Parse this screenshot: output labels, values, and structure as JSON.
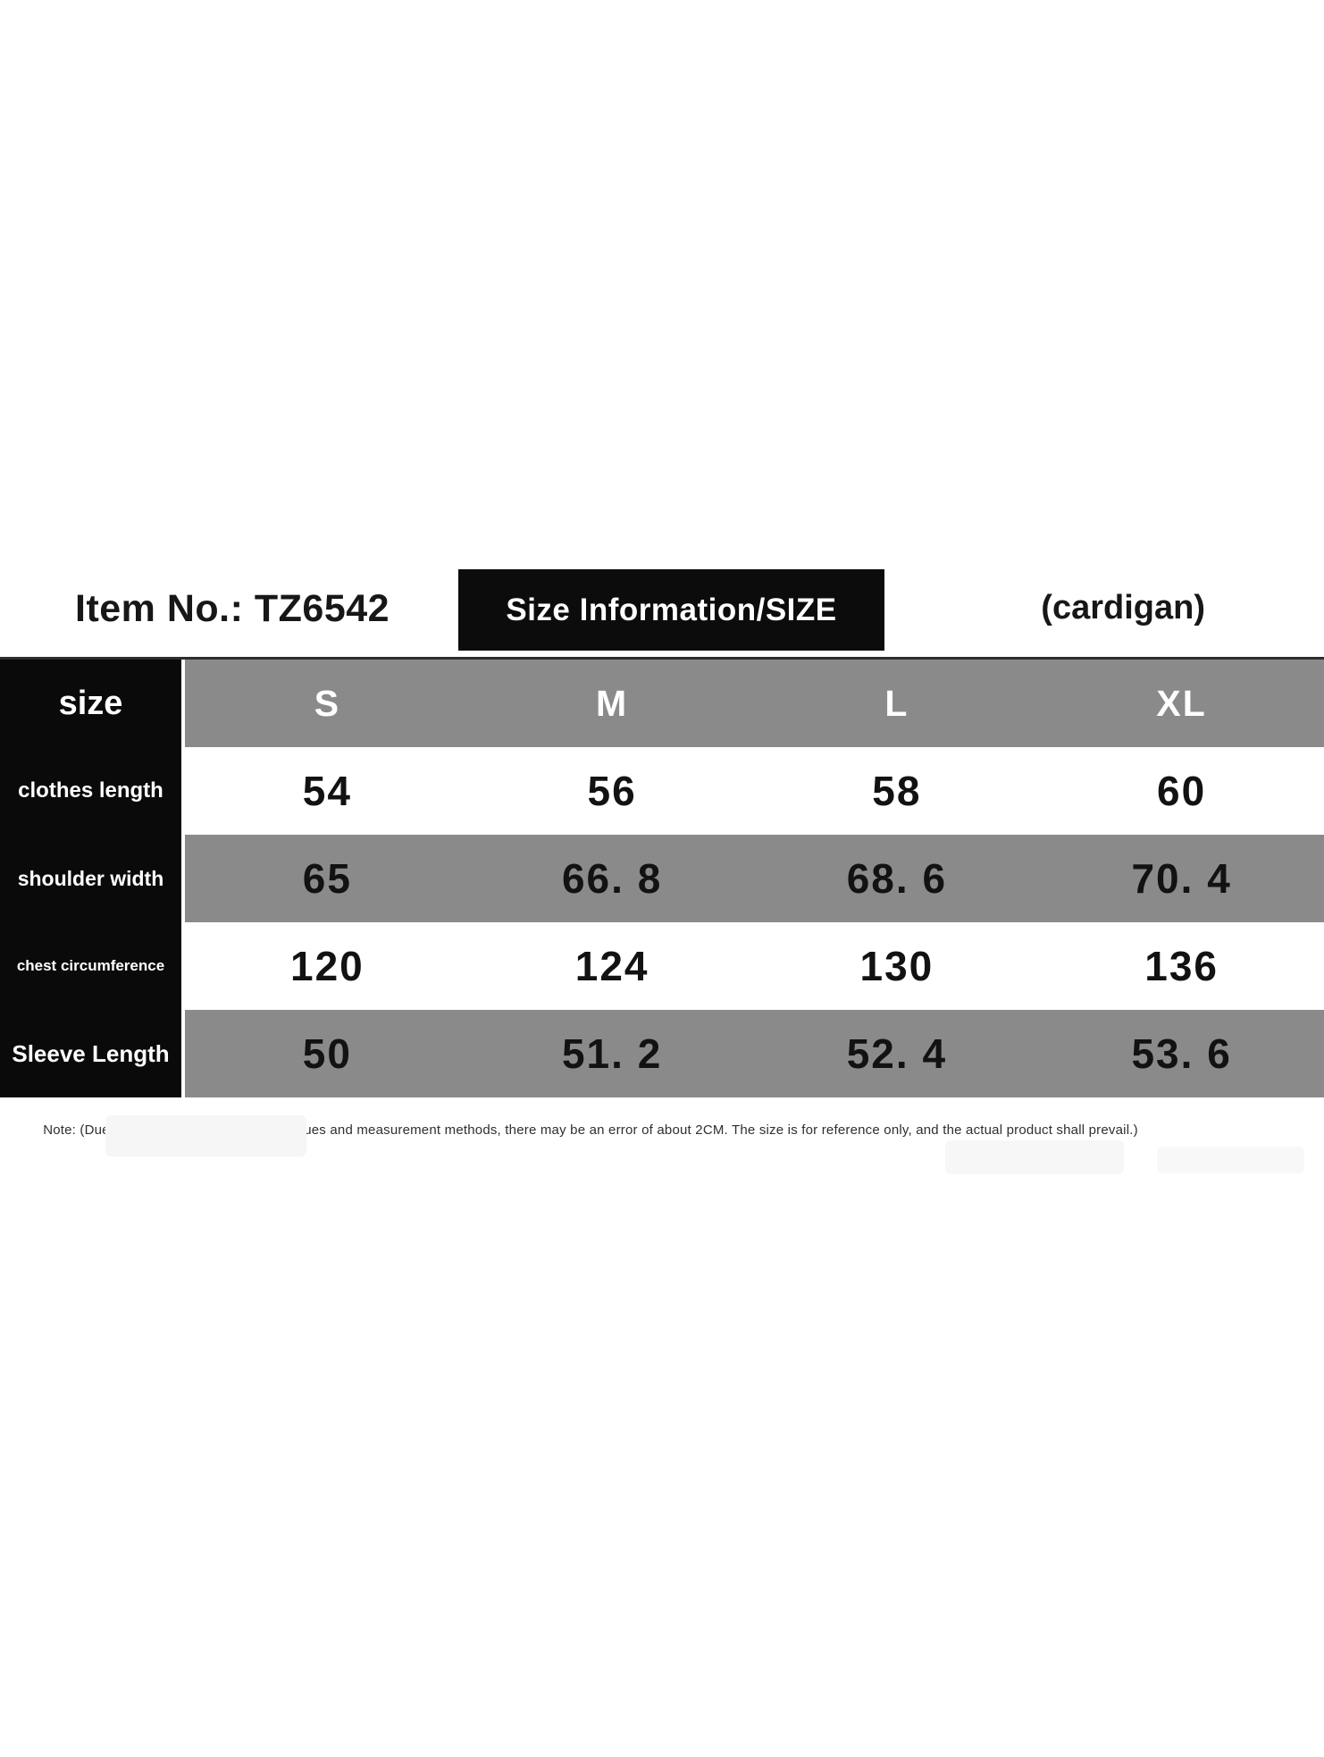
{
  "header": {
    "item_no": "Item No.: TZ6542",
    "title": "Size Information/SIZE",
    "product_type": "(cardigan)",
    "title_bg": "#0c0c0c",
    "title_color": "#ffffff"
  },
  "table": {
    "corner_label": "size",
    "size_headers": [
      "S",
      "M",
      "L",
      "XL"
    ],
    "rows": [
      {
        "label": "clothes length",
        "values": [
          "54",
          "56",
          "58",
          "60"
        ]
      },
      {
        "label": "shoulder width",
        "values": [
          "65",
          "66. 8",
          "68. 6",
          "70. 4"
        ]
      },
      {
        "label": "chest circumference",
        "values": [
          "120",
          "124",
          "130",
          "136"
        ]
      },
      {
        "label": "Sleeve Length",
        "values": [
          "50",
          "51. 2",
          "52. 4",
          "53. 6"
        ]
      }
    ],
    "colors": {
      "label_column_bg": "#0a0a0a",
      "stripe_gray": "#8a8a8a",
      "stripe_white": "#ffffff",
      "header_text": "#ffffff",
      "cell_text": "#121212",
      "top_border": "#2e2e2e"
    }
  },
  "note": "Note: (Due to differences in cutting techniques and measurement methods, there may be an error of about 2CM. The size is for reference only, and the actual product shall prevail.)"
}
